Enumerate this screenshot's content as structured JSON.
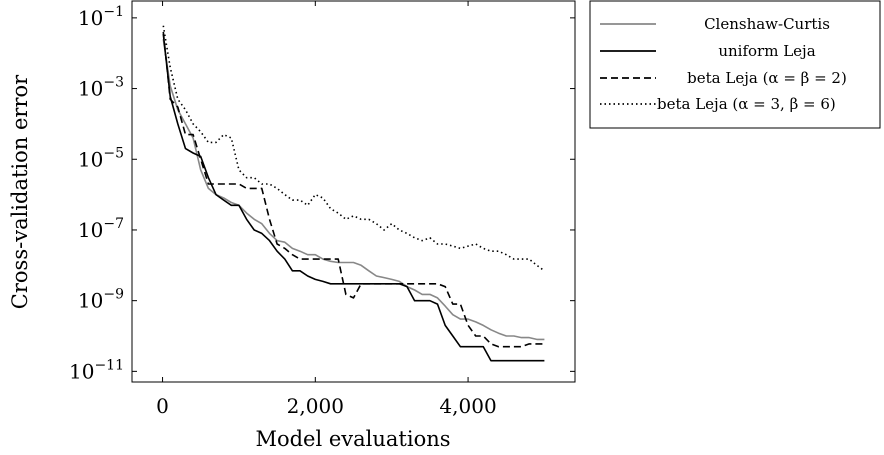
{
  "chart_data": {
    "type": "line",
    "xlabel": "Model evaluations",
    "ylabel": "Cross-validation error",
    "xlim": [
      -400,
      5400
    ],
    "ylim": [
      5e-12,
      0.3
    ],
    "yscale": "log",
    "xticks": [
      0,
      2000,
      4000
    ],
    "xtick_labels": [
      "0",
      "2,000",
      "4,000"
    ],
    "yticks": [
      1e-11,
      1e-09,
      1e-07,
      1e-05,
      0.001,
      0.1
    ],
    "ytick_bases": [
      "10",
      "10",
      "10",
      "10",
      "10",
      "10"
    ],
    "ytick_exponents": [
      "−11",
      "−9",
      "−7",
      "−5",
      "−3",
      "−1"
    ],
    "grid": false,
    "legend_position": "outside-right",
    "series": [
      {
        "name": "Clenshaw-Curtis",
        "color": "#888888",
        "dash": "solid",
        "x": [
          10,
          100,
          200,
          300,
          400,
          500,
          600,
          700,
          800,
          900,
          1000,
          1100,
          1200,
          1300,
          1400,
          1500,
          1600,
          1700,
          1800,
          1900,
          2000,
          2100,
          2200,
          2300,
          2400,
          2500,
          2600,
          2700,
          2800,
          2900,
          3000,
          3100,
          3200,
          3300,
          3400,
          3500,
          3600,
          3700,
          3800,
          3900,
          4000,
          4100,
          4200,
          4300,
          4400,
          4500,
          4600,
          4700,
          4800,
          4900,
          5000
        ],
        "y": [
          0.025,
          0.0012,
          0.00025,
          0.0001,
          4e-05,
          5e-06,
          1.5e-06,
          1e-06,
          8e-07,
          6e-07,
          5e-07,
          3e-07,
          2e-07,
          1.5e-07,
          8e-08,
          5e-08,
          4.5e-08,
          3e-08,
          2.5e-08,
          2e-08,
          2e-08,
          1.5e-08,
          1.3e-08,
          1.2e-08,
          1.2e-08,
          1.2e-08,
          1e-08,
          7e-09,
          5e-09,
          4.5e-09,
          4e-09,
          3.5e-09,
          2.5e-09,
          2e-09,
          1.5e-09,
          1.5e-09,
          1.2e-09,
          7e-10,
          4e-10,
          3e-10,
          3e-10,
          2.5e-10,
          2e-10,
          1.5e-10,
          1.2e-10,
          1e-10,
          1e-10,
          9e-11,
          9e-11,
          8e-11,
          8e-11
        ]
      },
      {
        "name": "uniform Leja",
        "color": "#000000",
        "dash": "solid",
        "x": [
          10,
          100,
          200,
          300,
          400,
          500,
          600,
          700,
          800,
          900,
          1000,
          1100,
          1200,
          1300,
          1400,
          1500,
          1600,
          1700,
          1800,
          1900,
          2000,
          2100,
          2200,
          2300,
          2400,
          2500,
          2600,
          2700,
          2800,
          2900,
          3000,
          3100,
          3200,
          3300,
          3400,
          3500,
          3600,
          3700,
          3800,
          3900,
          4000,
          4100,
          4200,
          4300,
          4400,
          4500,
          4600,
          4700,
          4800,
          4900,
          5000
        ],
        "y": [
          0.035,
          0.0006,
          0.0001,
          2e-05,
          1.5e-05,
          1.2e-05,
          3e-06,
          1e-06,
          7e-07,
          5e-07,
          5e-07,
          2e-07,
          1e-07,
          8e-08,
          5e-08,
          2.5e-08,
          1.5e-08,
          7e-09,
          7e-09,
          5e-09,
          4e-09,
          3.5e-09,
          3e-09,
          3e-09,
          3e-09,
          3e-09,
          3e-09,
          3e-09,
          3e-09,
          3e-09,
          3e-09,
          3e-09,
          2.5e-09,
          1e-09,
          1e-09,
          1e-09,
          8e-10,
          2e-10,
          1e-10,
          5e-11,
          5e-11,
          5e-11,
          5e-11,
          2e-11,
          2e-11,
          2e-11,
          2e-11,
          2e-11,
          2e-11,
          2e-11,
          2e-11
        ]
      },
      {
        "name": "beta Leja (α = β = 2)",
        "color": "#000000",
        "dash": "dashed",
        "x": [
          10,
          100,
          200,
          300,
          400,
          500,
          600,
          700,
          800,
          900,
          1000,
          1100,
          1200,
          1300,
          1400,
          1500,
          1600,
          1700,
          1800,
          1900,
          2000,
          2100,
          2200,
          2300,
          2400,
          2500,
          2600,
          2700,
          2800,
          2900,
          3000,
          3100,
          3200,
          3300,
          3400,
          3500,
          3600,
          3700,
          3800,
          3900,
          4000,
          4100,
          4200,
          4300,
          4400,
          4500,
          4600,
          4700,
          4800,
          4900,
          5000
        ],
        "y": [
          0.04,
          0.0005,
          0.0003,
          5e-05,
          5e-05,
          1e-05,
          2e-06,
          2e-06,
          2e-06,
          2e-06,
          2e-06,
          1.5e-06,
          1.5e-06,
          1.5e-06,
          2e-07,
          4e-08,
          3e-08,
          2e-08,
          1.5e-08,
          1.5e-08,
          1.5e-08,
          1.5e-08,
          1.5e-08,
          1.5e-08,
          1.5e-09,
          1.2e-09,
          3e-09,
          3e-09,
          3e-09,
          3e-09,
          3e-09,
          3e-09,
          3e-09,
          3e-09,
          3e-09,
          3e-09,
          3e-09,
          2.5e-09,
          8e-10,
          8e-10,
          2e-10,
          1e-10,
          1e-10,
          6e-11,
          5e-11,
          5e-11,
          5e-11,
          5e-11,
          6e-11,
          6e-11,
          6e-11
        ]
      },
      {
        "name": "beta Leja (α = 3, β = 6)",
        "color": "#000000",
        "dash": "dotted",
        "x": [
          10,
          100,
          200,
          300,
          400,
          500,
          600,
          700,
          800,
          900,
          1000,
          1100,
          1200,
          1300,
          1400,
          1500,
          1600,
          1700,
          1800,
          1900,
          2000,
          2100,
          2200,
          2300,
          2400,
          2500,
          2600,
          2700,
          2800,
          2900,
          3000,
          3100,
          3200,
          3300,
          3400,
          3500,
          3600,
          3700,
          3800,
          3900,
          4000,
          4100,
          4200,
          4300,
          4400,
          4500,
          4600,
          4700,
          4800,
          4900,
          5000
        ],
        "y": [
          0.06,
          0.004,
          0.0005,
          0.00025,
          0.0001,
          6e-05,
          3e-05,
          3e-05,
          5e-05,
          4e-05,
          5e-06,
          3e-06,
          3e-06,
          2e-06,
          2e-06,
          1.5e-06,
          1e-06,
          7e-07,
          7e-07,
          5e-07,
          1e-06,
          8e-07,
          4e-07,
          3e-07,
          2e-07,
          2.5e-07,
          2e-07,
          2e-07,
          1.5e-07,
          1e-07,
          1.5e-07,
          1e-07,
          8e-08,
          6e-08,
          5e-08,
          6e-08,
          4e-08,
          4e-08,
          3.5e-08,
          3e-08,
          3.5e-08,
          4e-08,
          3e-08,
          2.5e-08,
          2.5e-08,
          2e-08,
          1.5e-08,
          1.5e-08,
          1.5e-08,
          1e-08,
          7e-09
        ]
      }
    ]
  }
}
